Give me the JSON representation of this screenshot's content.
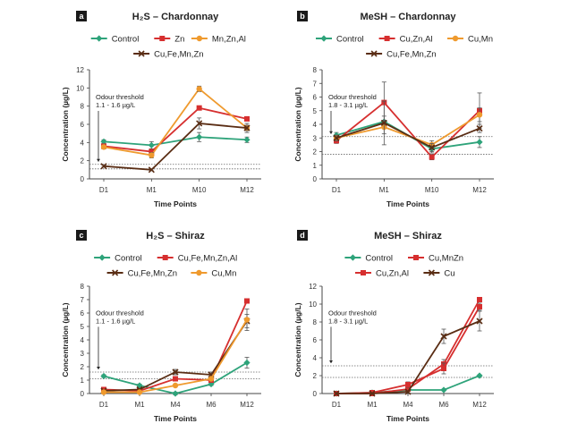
{
  "colors": {
    "Control": "#2ea37a",
    "Zn": "#d62f2f",
    "Mn,Zn,Al": "#ef9a2e",
    "Cu,Fe,Mn,Zn": "#5a2d14",
    "Cu,Zn,Al": "#d62f2f",
    "Cu,Mn": "#ef9a2e",
    "Cu,Fe,Mn,Zn,Al": "#d62f2f",
    "Cu,MnZn": "#d62f2f",
    "Cu": "#5a2d14"
  },
  "chart_data": [
    {
      "panel": "a",
      "type": "line",
      "title": "H₂S – Chardonnay",
      "xlabel": "Time Points",
      "ylabel": "Concentration (µg/L)",
      "categories": [
        "D1",
        "M1",
        "M10",
        "M12"
      ],
      "ylim": [
        0,
        12
      ],
      "yticks": [
        0,
        2,
        4,
        6,
        8,
        10,
        12
      ],
      "grid": false,
      "legend_position": "top",
      "legend_rows": [
        [
          "Control",
          "Zn",
          "Mn,Zn,Al"
        ],
        [
          "Cu,Fe,Mn,Zn"
        ]
      ],
      "threshold": {
        "label1": "Odour threshold",
        "label2": "1.1 - 1.6 µg/L",
        "values": [
          1.1,
          1.6
        ]
      },
      "series": [
        {
          "name": "Control",
          "values": [
            4.1,
            3.7,
            4.6,
            4.3
          ],
          "err": [
            0.2,
            0.4,
            0.5,
            0.3
          ]
        },
        {
          "name": "Zn",
          "values": [
            3.6,
            3.0,
            7.8,
            6.6
          ],
          "err": [
            0.2,
            0.3,
            0.2,
            0.2
          ]
        },
        {
          "name": "Mn,Zn,Al",
          "values": [
            3.5,
            2.6,
            9.9,
            5.6
          ],
          "err": [
            0.2,
            0.3,
            0.3,
            0.3
          ]
        },
        {
          "name": "Cu,Fe,Mn,Zn",
          "values": [
            1.4,
            1.0,
            6.1,
            5.6
          ],
          "err": [
            0.1,
            0.1,
            0.6,
            0.5
          ]
        }
      ]
    },
    {
      "panel": "b",
      "type": "line",
      "title": "MeSH – Chardonnay",
      "xlabel": "Time Points",
      "ylabel": "Concentration (µg/L)",
      "categories": [
        "D1",
        "M1",
        "M10",
        "M12"
      ],
      "ylim": [
        0,
        8
      ],
      "yticks": [
        0,
        1,
        2,
        3,
        4,
        5,
        6,
        7,
        8
      ],
      "grid": false,
      "legend_position": "top",
      "legend_rows": [
        [
          "Control",
          "Cu,Zn,Al",
          "Cu,Mn"
        ],
        [
          "Cu,Fe,Mn,Zn"
        ]
      ],
      "threshold": {
        "label1": "Odour threshold",
        "label2": "1.8 - 3.1 µg/L",
        "values": [
          1.8,
          3.1
        ]
      },
      "series": [
        {
          "name": "Control",
          "values": [
            3.2,
            4.2,
            2.2,
            2.7
          ],
          "err": [
            0.2,
            0.4,
            0.3,
            0.4
          ]
        },
        {
          "name": "Cu,Zn,Al",
          "values": [
            2.8,
            5.6,
            1.6,
            5.0
          ],
          "err": [
            0.2,
            1.5,
            0.2,
            1.3
          ]
        },
        {
          "name": "Cu,Mn",
          "values": [
            3.0,
            3.8,
            2.5,
            4.7
          ],
          "err": [
            0.2,
            0.5,
            0.3,
            0.5
          ]
        },
        {
          "name": "Cu,Fe,Mn,Zn",
          "values": [
            3.0,
            4.1,
            2.3,
            3.7
          ],
          "err": [
            0.2,
            1.6,
            0.3,
            0.3
          ]
        }
      ]
    },
    {
      "panel": "c",
      "type": "line",
      "title": "H₂S – Shiraz",
      "xlabel": "Time Points",
      "ylabel": "Concentration (µg/L)",
      "categories": [
        "D1",
        "M1",
        "M4",
        "M6",
        "M12"
      ],
      "ylim": [
        0,
        8
      ],
      "yticks": [
        0,
        1,
        2,
        3,
        4,
        5,
        6,
        7,
        8
      ],
      "grid": false,
      "legend_position": "top",
      "legend_rows": [
        [
          "Control",
          "Cu,Fe,Mn,Zn,Al"
        ],
        [
          "Cu,Fe,Mn,Zn",
          "Cu,Mn"
        ]
      ],
      "threshold": {
        "label1": "Odour threshold",
        "label2": "1.1 - 1.6 µg/L",
        "values": [
          1.1,
          1.6
        ]
      },
      "series": [
        {
          "name": "Control",
          "values": [
            1.3,
            0.6,
            0.0,
            0.7,
            2.3
          ],
          "err": [
            0.1,
            0.1,
            0.1,
            0.1,
            0.4
          ]
        },
        {
          "name": "Cu,Fe,Mn,Zn,Al",
          "values": [
            0.3,
            0.2,
            1.1,
            1.0,
            6.9
          ],
          "err": [
            0.05,
            0.05,
            0.1,
            0.1,
            0.1
          ]
        },
        {
          "name": "Cu,Fe,Mn,Zn",
          "values": [
            0.2,
            0.3,
            1.6,
            1.4,
            5.4
          ],
          "err": [
            0.05,
            0.05,
            0.2,
            0.2,
            0.5
          ]
        },
        {
          "name": "Cu,Mn",
          "values": [
            0.1,
            0.1,
            0.6,
            1.1,
            5.5
          ],
          "err": [
            0.05,
            0.05,
            0.1,
            0.1,
            0.8
          ]
        }
      ]
    },
    {
      "panel": "d",
      "type": "line",
      "title": "MeSH – Shiraz",
      "xlabel": "Time Points",
      "ylabel": "Concentration (µg/L)",
      "categories": [
        "D1",
        "M1",
        "M4",
        "M6",
        "M12"
      ],
      "ylim": [
        0,
        12
      ],
      "yticks": [
        0,
        2,
        4,
        6,
        8,
        10,
        12
      ],
      "grid": false,
      "legend_position": "top",
      "legend_rows": [
        [
          "Control",
          "Cu,MnZn"
        ],
        [
          "Cu,Zn,Al",
          "Cu"
        ]
      ],
      "threshold": {
        "label1": "Odour threshold",
        "label2": "1.8 - 3.1 µg/L",
        "values": [
          1.8,
          3.1
        ]
      },
      "series": [
        {
          "name": "Control",
          "values": [
            0.0,
            0.1,
            0.4,
            0.4,
            2.0
          ],
          "err": [
            0.05,
            0.05,
            0.1,
            0.1,
            0.1
          ]
        },
        {
          "name": "Cu,MnZn",
          "values": [
            0.0,
            0.0,
            0.5,
            3.3,
            10.5
          ],
          "err": [
            0.05,
            0.05,
            0.2,
            0.5,
            0.2
          ]
        },
        {
          "name": "Cu,Zn,Al",
          "values": [
            0.0,
            0.1,
            1.0,
            2.8,
            9.7
          ],
          "err": [
            0.05,
            0.05,
            0.3,
            0.6,
            0.4
          ]
        },
        {
          "name": "Cu",
          "values": [
            0.0,
            0.0,
            0.2,
            6.4,
            8.1
          ],
          "err": [
            0.05,
            0.05,
            0.1,
            0.8,
            1.1
          ]
        }
      ]
    }
  ]
}
